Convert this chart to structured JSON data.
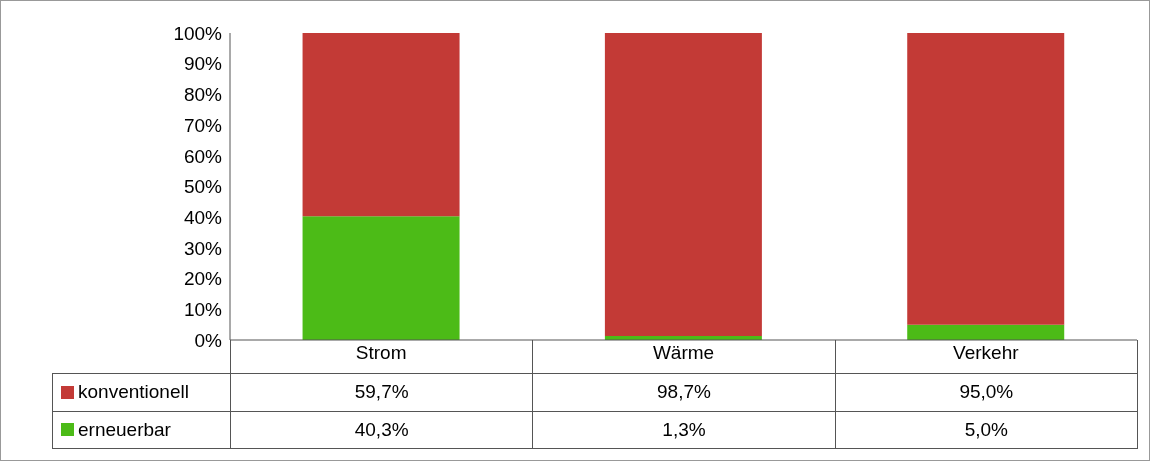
{
  "chart_data": {
    "type": "bar",
    "stacked": true,
    "categories": [
      "Strom",
      "Wärme",
      "Verkehr"
    ],
    "series": [
      {
        "name": "erneuerbar",
        "color": "#4cbb17",
        "values": [
          40.3,
          1.3,
          5.0
        ],
        "value_labels": [
          "40,3%",
          "1,3%",
          "5,0%"
        ]
      },
      {
        "name": "konventionell",
        "color": "#c33a36",
        "values": [
          59.7,
          98.7,
          95.0
        ],
        "value_labels": [
          "59,7%",
          "98,7%",
          "95,0%"
        ]
      }
    ],
    "ylim": [
      0,
      100
    ],
    "yticks": [
      {
        "value": 0,
        "label": "0%"
      },
      {
        "value": 10,
        "label": "10%"
      },
      {
        "value": 20,
        "label": "20%"
      },
      {
        "value": 30,
        "label": "30%"
      },
      {
        "value": 40,
        "label": "40%"
      },
      {
        "value": 50,
        "label": "50%"
      },
      {
        "value": 60,
        "label": "60%"
      },
      {
        "value": 70,
        "label": "70%"
      },
      {
        "value": 80,
        "label": "80%"
      },
      {
        "value": 90,
        "label": "90%"
      },
      {
        "value": 100,
        "label": "100%"
      }
    ],
    "grid": false,
    "legend": "bottom"
  }
}
